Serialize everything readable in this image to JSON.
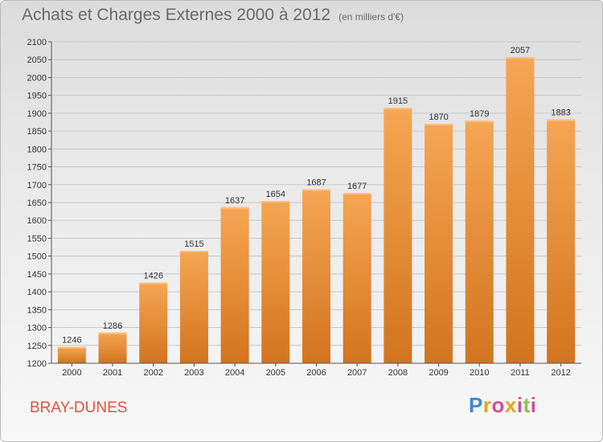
{
  "title": "Achats et Charges Externes 2000 à 2012",
  "unit": "(en milliers d'€)",
  "location": "BRAY-DUNES",
  "logo": {
    "text": "Proxiti"
  },
  "colors": {
    "bar": "#f09a45",
    "bar_dark": "#d2741f",
    "grid": "#c8c8c8"
  },
  "chart_data": {
    "type": "bar",
    "title": "Achats et Charges Externes 2000 à 2012",
    "subtitle": "(en milliers d'€)",
    "categories": [
      "2000",
      "2001",
      "2002",
      "2003",
      "2004",
      "2005",
      "2006",
      "2007",
      "2008",
      "2009",
      "2010",
      "2011",
      "2012"
    ],
    "values": [
      1246,
      1286,
      1426,
      1515,
      1637,
      1654,
      1687,
      1677,
      1915,
      1870,
      1879,
      2057,
      1883
    ],
    "ylim": [
      1200,
      2100
    ],
    "yticks": [
      1200,
      1250,
      1300,
      1350,
      1400,
      1450,
      1500,
      1550,
      1600,
      1650,
      1700,
      1750,
      1800,
      1850,
      1900,
      1950,
      2000,
      2050,
      2100
    ],
    "grid": true,
    "xlabel": "",
    "ylabel": ""
  }
}
